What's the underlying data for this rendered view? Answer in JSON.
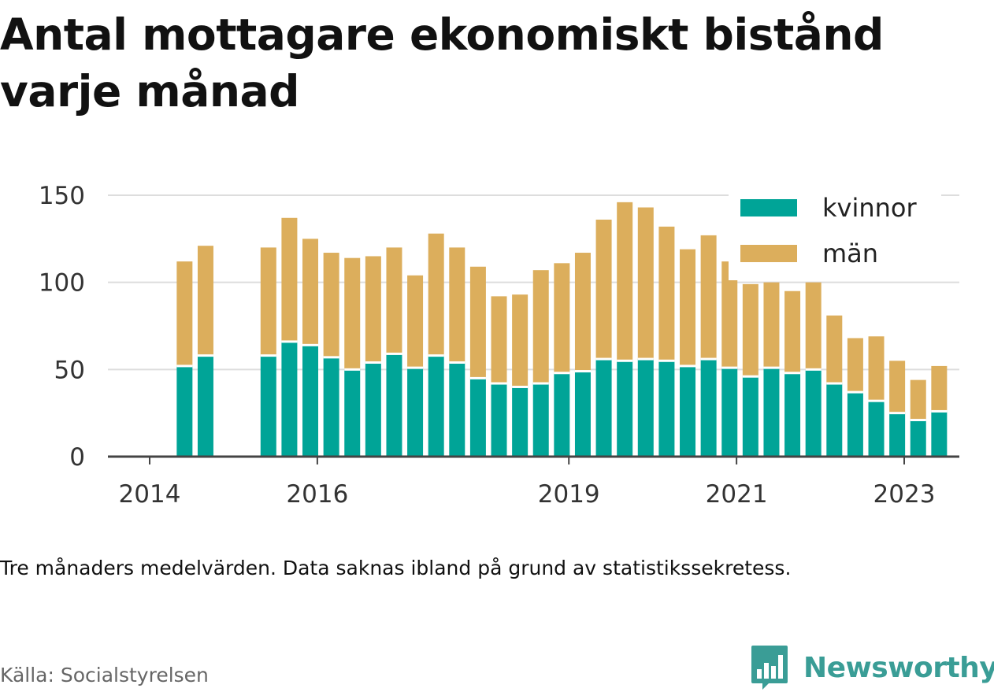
{
  "title": "Antal mottagare ekonomiskt bistånd varje månad",
  "note": "Tre månaders medelvärden. Data saknas ibland på grund av statistikssekretess.",
  "source": "Källa: Socialstyrelsen",
  "brand": {
    "name": "Newsworthy",
    "icon": "newsworthy-logo-icon",
    "color": "#3a9d96"
  },
  "chart_data": {
    "type": "bar",
    "stacked": true,
    "x_type": "date",
    "x": [
      "2014-05",
      "2014-08",
      "2015-05",
      "2015-08",
      "2015-11",
      "2016-02",
      "2016-05",
      "2016-08",
      "2016-11",
      "2017-02",
      "2017-05",
      "2017-08",
      "2017-11",
      "2018-02",
      "2018-05",
      "2018-08",
      "2018-11",
      "2019-02",
      "2019-05",
      "2019-08",
      "2019-11",
      "2020-02",
      "2020-05",
      "2020-08",
      "2020-11",
      "2021-02",
      "2021-05",
      "2021-08",
      "2021-11",
      "2022-02",
      "2022-05",
      "2022-08",
      "2022-11",
      "2023-02",
      "2023-05"
    ],
    "series": [
      {
        "name": "kvinnor",
        "color": "#00a497",
        "values": [
          52,
          58,
          58,
          66,
          64,
          57,
          50,
          54,
          59,
          51,
          58,
          54,
          45,
          42,
          40,
          42,
          48,
          49,
          56,
          55,
          56,
          55,
          52,
          56,
          51,
          46,
          51,
          48,
          50,
          42,
          37,
          32,
          25,
          21,
          26
        ]
      },
      {
        "name": "män",
        "color": "#dcae5c",
        "values": [
          60,
          63,
          62,
          71,
          61,
          60,
          64,
          61,
          61,
          53,
          70,
          66,
          64,
          50,
          53,
          65,
          63,
          68,
          80,
          91,
          87,
          77,
          67,
          71,
          61,
          53,
          49,
          47,
          50,
          39,
          31,
          37,
          30,
          23,
          26
        ]
      }
    ],
    "x_ticks": [
      "2014",
      "2016",
      "2019",
      "2021",
      "2023"
    ],
    "y_ticks": [
      0,
      50,
      100,
      150
    ],
    "ylim": [
      0,
      150
    ],
    "legend_position": "top-right",
    "grid": "horizontal",
    "title": "Antal mottagare ekonomiskt bistånd varje månad",
    "xlabel": "",
    "ylabel": ""
  }
}
